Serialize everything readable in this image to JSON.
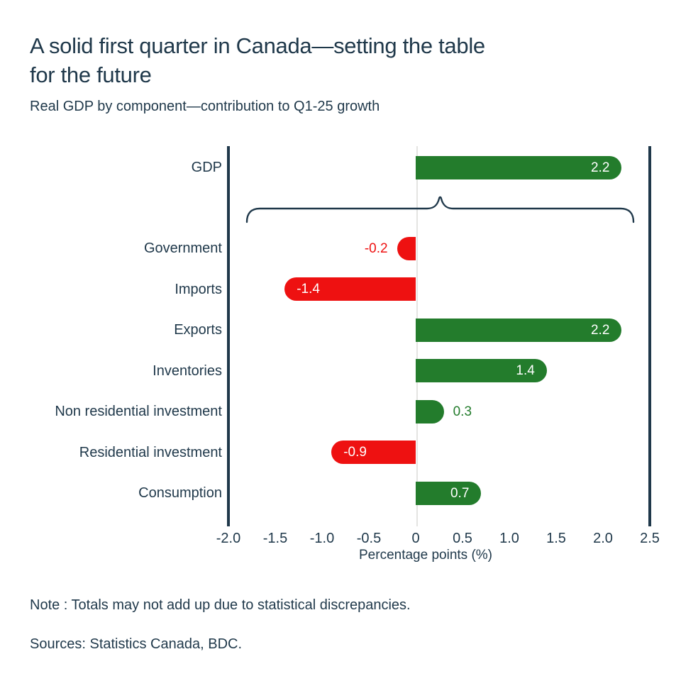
{
  "header": {
    "title": "A solid first quarter in Canada—setting the table\nfor the future",
    "subtitle": "Real GDP by component—contribution to Q1-25 growth"
  },
  "colors": {
    "positive": "#237c2c",
    "negative": "#ee1111",
    "text": "#1f384a",
    "zero_line": "#e4e4e2",
    "inside_label": "#ffffff"
  },
  "chart_data": {
    "type": "bar",
    "orientation": "horizontal",
    "categories": [
      "GDP",
      "Government",
      "Imports",
      "Exports",
      "Inventories",
      "Non residential investment",
      "Residential investment",
      "Consumption"
    ],
    "values": [
      2.2,
      -0.2,
      -1.4,
      2.2,
      1.4,
      0.3,
      -0.9,
      0.7
    ],
    "value_labels": [
      "2.2",
      "-0.2",
      "-1.4",
      "2.2",
      "1.4",
      "0.3",
      "-0.9",
      "0.7"
    ],
    "xlabel": "Percentage points (%)",
    "xlim": [
      -2.0,
      2.5
    ],
    "xticks": [
      "-2.0",
      "-1.5",
      "-1.0",
      "-0.5",
      "0",
      "0.5",
      "1.0",
      "1.5",
      "2.0",
      "2.5"
    ],
    "xtick_values": [
      -2.0,
      -1.5,
      -1.0,
      -0.5,
      0,
      0.5,
      1.0,
      1.5,
      2.0,
      2.5
    ],
    "grid": false,
    "legend": false,
    "annotation": "curly brace groups the component rows beneath the GDP total bar"
  },
  "footer": {
    "note": "Note : Totals may not add up due to statistical discrepancies.",
    "sources": "Sources: Statistics Canada, BDC."
  }
}
